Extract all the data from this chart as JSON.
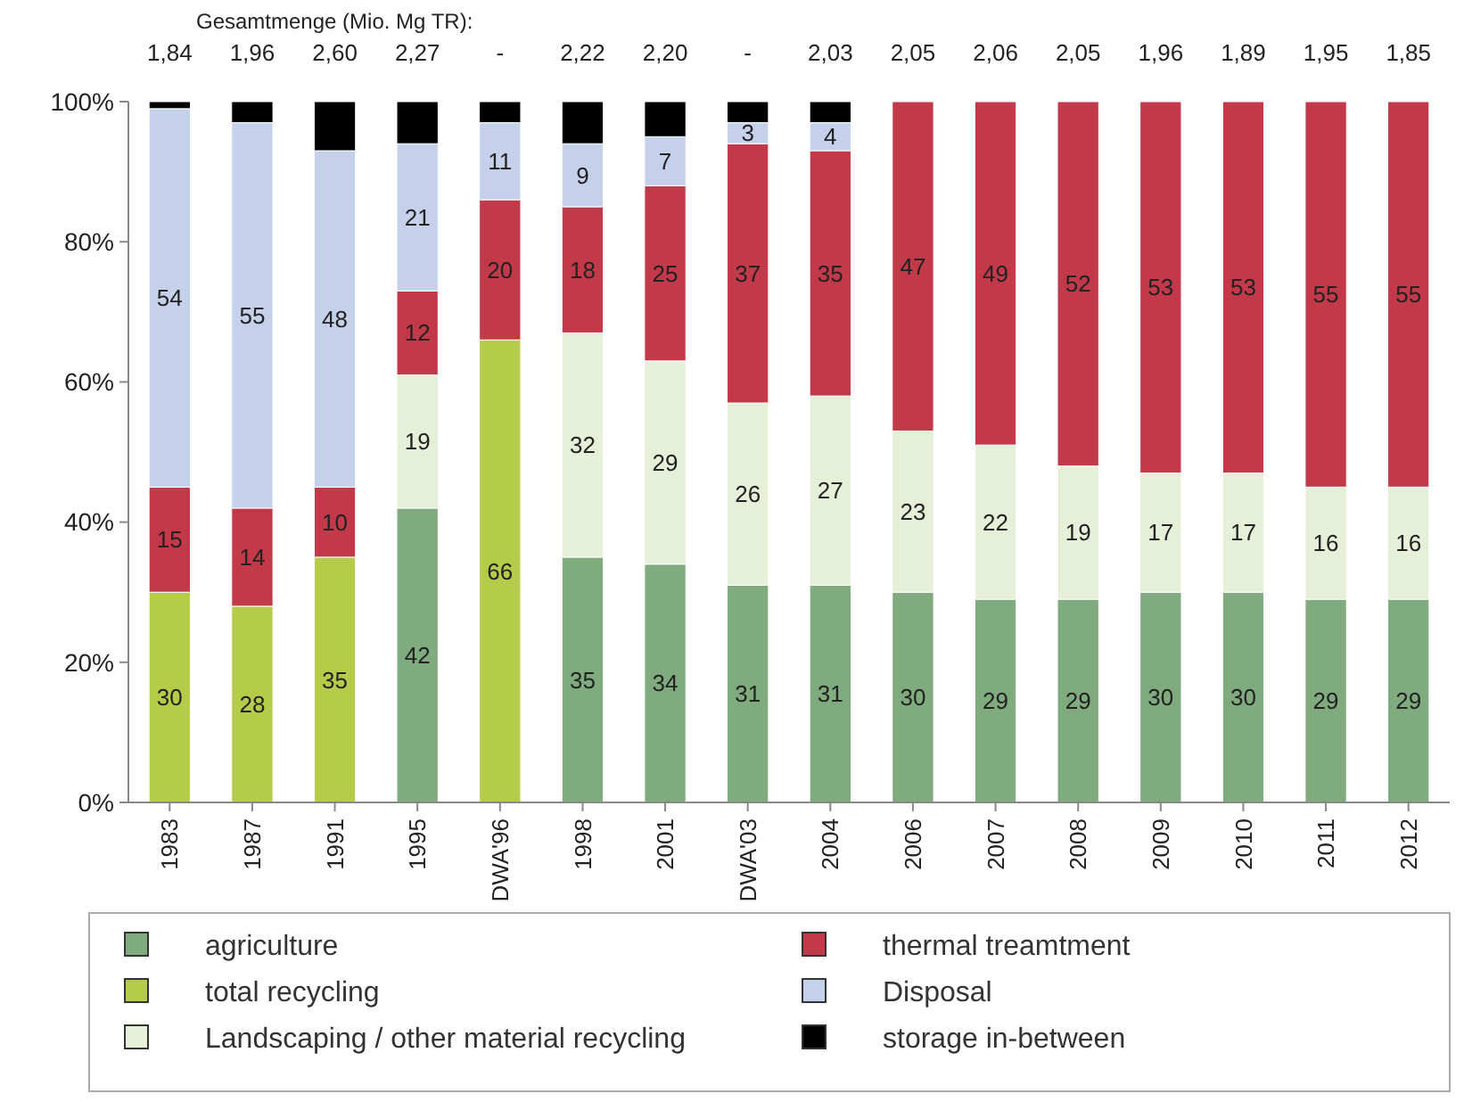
{
  "chart_data": {
    "type": "bar",
    "stacked": true,
    "categories": [
      "1983",
      "1987",
      "1991",
      "1995",
      "DWA'96",
      "1998",
      "2001",
      "DWA'03",
      "2004",
      "2006",
      "2007",
      "2008",
      "2009",
      "2010",
      "2011",
      "2012"
    ],
    "series": [
      {
        "name": "agriculture",
        "color": "#7fab7f",
        "values": [
          null,
          null,
          null,
          42,
          null,
          35,
          34,
          31,
          31,
          30,
          29,
          29,
          30,
          30,
          29,
          29
        ],
        "value_labels": [
          null,
          null,
          null,
          "42",
          null,
          "35",
          "34",
          "31",
          "31",
          "30",
          "29",
          "29",
          "30",
          "30",
          "29",
          "29"
        ]
      },
      {
        "name": "total recycling",
        "color": "#b5cc4a",
        "values": [
          30,
          28,
          35,
          null,
          66,
          null,
          null,
          null,
          null,
          null,
          null,
          null,
          null,
          null,
          null,
          null
        ],
        "value_labels": [
          "30",
          "28",
          "35",
          null,
          "66",
          null,
          null,
          null,
          null,
          null,
          null,
          null,
          null,
          null,
          null,
          null
        ]
      },
      {
        "name": "Landscaping / other material recycling",
        "color": "#e6efd8",
        "values": [
          null,
          null,
          null,
          19,
          null,
          32,
          29,
          26,
          27,
          23,
          22,
          19,
          17,
          17,
          16,
          16
        ],
        "value_labels": [
          null,
          null,
          null,
          "19",
          null,
          "32",
          "29",
          "26",
          "27",
          "23",
          "22",
          "19",
          "17",
          "17",
          "16",
          "16"
        ]
      },
      {
        "name": "thermal treamtment",
        "color": "#c23a4a",
        "values": [
          15,
          14,
          10,
          12,
          20,
          18,
          25,
          37,
          35,
          47,
          49,
          52,
          53,
          53,
          55,
          55
        ],
        "value_labels": [
          "15",
          "14",
          "10",
          "12",
          "20",
          "18",
          "25",
          "37",
          "35",
          "47",
          "49",
          "52",
          "53",
          "53",
          "55",
          "55"
        ]
      },
      {
        "name": "Disposal",
        "color": "#c5d0ea",
        "values": [
          54,
          55,
          48,
          21,
          11,
          9,
          7,
          3,
          4,
          null,
          null,
          null,
          null,
          null,
          null,
          null
        ],
        "value_labels": [
          "54",
          "55",
          "48",
          "21",
          "11",
          "9",
          "7",
          "3",
          "4",
          null,
          null,
          null,
          null,
          null,
          null,
          null
        ]
      },
      {
        "name": "storage in-between",
        "color": "#000000",
        "values": [
          1,
          3,
          7,
          6,
          3,
          6,
          5,
          3,
          3,
          null,
          null,
          null,
          null,
          null,
          null,
          null
        ]
      }
    ],
    "ylim": [
      0,
      100
    ],
    "yticks": [
      {
        "value": 0,
        "label": "0%"
      },
      {
        "value": 20,
        "label": "20%"
      },
      {
        "value": 40,
        "label": "40%"
      },
      {
        "value": 60,
        "label": "60%"
      },
      {
        "value": 80,
        "label": "80%"
      },
      {
        "value": 100,
        "label": "100%"
      }
    ],
    "grid": false,
    "legend": "bottom",
    "annotations": [
      "Gesamtmenge (Mio. Mg TR):",
      "1,84",
      "1,96",
      "2,60",
      "2,27",
      "-",
      "2,22",
      "2,20",
      "-",
      "2,03",
      "2,05",
      "2,06",
      "2,05",
      "1,96",
      "1,89",
      "1,95",
      "1,85"
    ]
  }
}
